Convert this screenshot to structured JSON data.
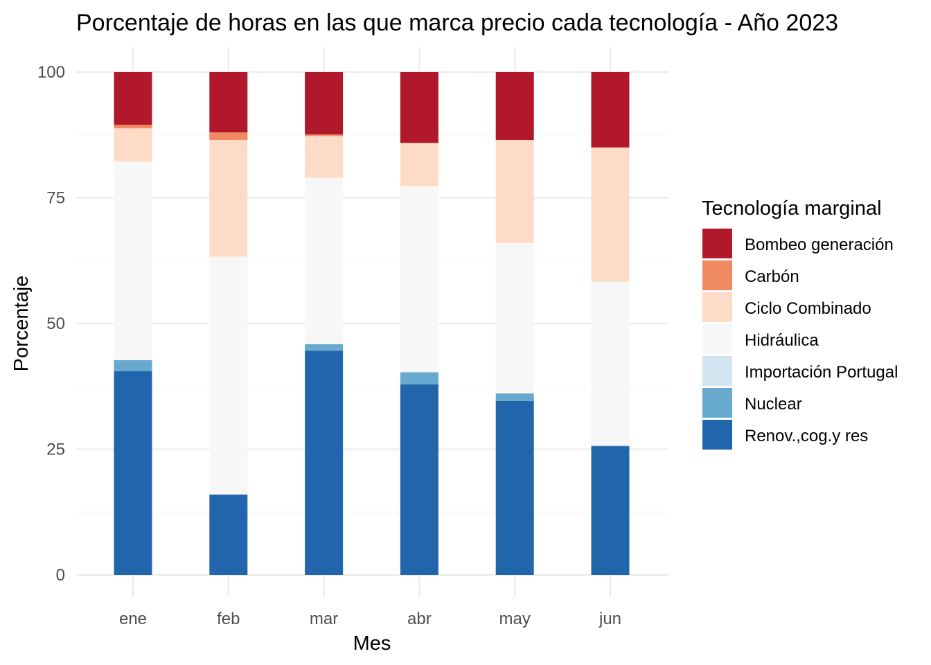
{
  "chart_data": {
    "type": "bar",
    "stacked": true,
    "title": "Porcentaje de horas en las que marca precio cada tecnología - Año 2023",
    "xlabel": "Mes",
    "ylabel": "Porcentaje",
    "ylim": [
      0,
      100
    ],
    "yticks": [
      0,
      25,
      50,
      75,
      100
    ],
    "grid": true,
    "legend_position": "right",
    "legend_title": "Tecnología marginal",
    "categories": [
      "ene",
      "feb",
      "mar",
      "abr",
      "may",
      "jun"
    ],
    "series": [
      {
        "name": "Renov.,cog.y res",
        "color": "#2166ac",
        "values": [
          40.5,
          16.0,
          44.6,
          37.9,
          34.6,
          25.6
        ]
      },
      {
        "name": "Nuclear",
        "color": "#67a9cf",
        "values": [
          2.2,
          0.0,
          1.3,
          2.4,
          1.5,
          0.1
        ]
      },
      {
        "name": "Importación Portugal",
        "color": "#d1e5f0",
        "values": [
          0.0,
          0.0,
          0.0,
          0.0,
          0.0,
          0.0
        ]
      },
      {
        "name": "Hidráulica",
        "color": "#f7f7f7",
        "values": [
          39.5,
          47.3,
          33.1,
          37.0,
          29.9,
          32.6
        ]
      },
      {
        "name": "Ciclo Combinado",
        "color": "#fddbc7",
        "values": [
          6.6,
          23.2,
          8.3,
          8.6,
          20.5,
          26.7
        ]
      },
      {
        "name": "Carbón",
        "color": "#ef8a62",
        "values": [
          0.7,
          1.5,
          0.3,
          0.0,
          0.0,
          0.0
        ]
      },
      {
        "name": "Bombeo generación",
        "color": "#b2182b",
        "values": [
          10.5,
          12.0,
          12.4,
          14.1,
          13.5,
          15.0
        ]
      }
    ]
  }
}
